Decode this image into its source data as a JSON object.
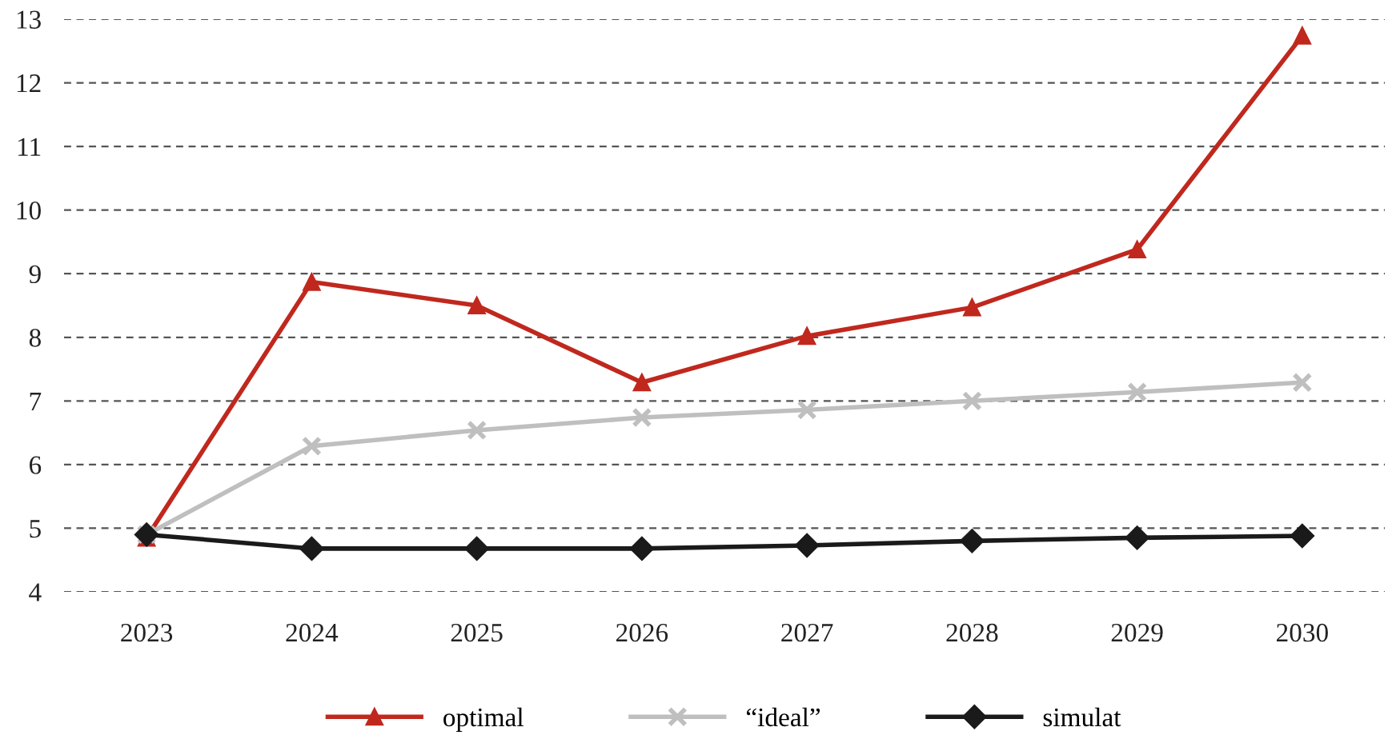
{
  "chart_data": {
    "type": "line",
    "categories": [
      "2023",
      "2024",
      "2025",
      "2026",
      "2027",
      "2028",
      "2029",
      "2030"
    ],
    "series": [
      {
        "name": "optimal",
        "color": "#c0281e",
        "marker": "triangle",
        "values": [
          4.85,
          8.87,
          8.5,
          7.29,
          8.02,
          8.47,
          9.38,
          12.74
        ]
      },
      {
        "name": "“ideal”",
        "color": "#bfbfbf",
        "marker": "cross",
        "values": [
          4.9,
          6.29,
          6.54,
          6.74,
          6.86,
          7.0,
          7.14,
          7.29
        ]
      },
      {
        "name": "simulat",
        "color": "#1a1a1a",
        "marker": "diamond",
        "values": [
          4.9,
          4.68,
          4.68,
          4.68,
          4.73,
          4.8,
          4.85,
          4.88
        ]
      }
    ],
    "ylim": [
      4,
      13
    ],
    "yticks": [
      4,
      5,
      6,
      7,
      8,
      9,
      10,
      11,
      12,
      13
    ],
    "grid": "y",
    "legend": "bottom",
    "line_style": "solid"
  }
}
